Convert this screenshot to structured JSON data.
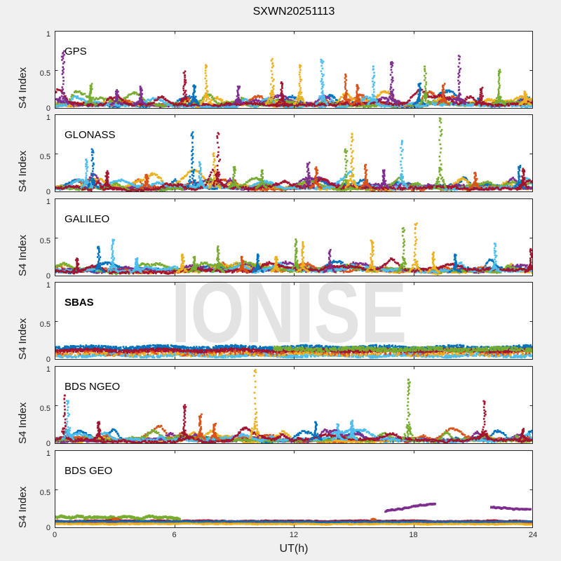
{
  "figure": {
    "title": "SXWN20251113",
    "xlabel": "UT(h)",
    "ylabel": "S4 Index",
    "watermark": "IONISE",
    "background_color": "#f0f0f0",
    "axes_color": "#262626",
    "x_tick_labels": [
      "0",
      "6",
      "12",
      "18",
      "24"
    ],
    "x_tick_hours": [
      0,
      6,
      12,
      18,
      24
    ],
    "y_tick_labels_top_to_bottom": [
      "1",
      "0.5",
      "0"
    ],
    "y_tick_values": [
      0,
      0.5,
      1
    ]
  },
  "chart_data": {
    "type": "scatter",
    "title": "SXWN20251113",
    "xlabel": "UT(h)",
    "ylabel": "S4 Index",
    "x_range_hours": [
      0,
      24
    ],
    "y_range": [
      0,
      1
    ],
    "marker": "square",
    "marker_size_px": 2.6,
    "legend": "none",
    "grid": false,
    "colors": [
      "#0072BD",
      "#D95319",
      "#EDB120",
      "#7E2F8E",
      "#77AC30",
      "#4DBEEE",
      "#A2142F"
    ],
    "color_names": [
      "blue",
      "orange",
      "yellow",
      "purple",
      "green",
      "light-blue",
      "dark-red"
    ],
    "panels": [
      {
        "label": "GPS",
        "bold": false,
        "seed": 11,
        "description": "dense multi-color baseline band S4 0-0.2 with scintillation spike trails",
        "baseline": {
          "n": 620,
          "base": 0.05,
          "var": 0.03,
          "jitter": 0.014,
          "bumps": 9,
          "bump_h": [
            0.03,
            0.12
          ]
        },
        "spikes": [
          [
            0.4,
            0.72,
            3
          ],
          [
            1.8,
            0.3,
            4
          ],
          [
            3.1,
            0.22,
            3
          ],
          [
            4.3,
            0.28,
            3
          ],
          [
            6.5,
            0.46,
            6
          ],
          [
            7.0,
            0.3,
            0
          ],
          [
            7.6,
            0.56,
            2
          ],
          [
            9.2,
            0.28,
            3
          ],
          [
            10.9,
            0.62,
            2
          ],
          [
            11.4,
            0.34,
            6
          ],
          [
            12.3,
            0.56,
            2
          ],
          [
            13.4,
            0.62,
            5
          ],
          [
            14.6,
            0.44,
            1
          ],
          [
            15.2,
            0.3,
            1
          ],
          [
            16.0,
            0.54,
            5
          ],
          [
            16.9,
            0.6,
            3
          ],
          [
            18.3,
            0.32,
            0
          ],
          [
            18.6,
            0.54,
            4
          ],
          [
            19.5,
            0.3,
            1
          ],
          [
            20.3,
            0.68,
            3
          ],
          [
            21.4,
            0.25,
            6
          ],
          [
            22.3,
            0.48,
            4
          ],
          [
            23.6,
            0.22,
            2
          ]
        ]
      },
      {
        "label": "GLONASS",
        "bold": false,
        "seed": 22,
        "description": "baseline band 0-0.2 with tall spikes up to ~0.95",
        "baseline": {
          "n": 620,
          "base": 0.055,
          "var": 0.03,
          "jitter": 0.014,
          "bumps": 9,
          "bump_h": [
            0.03,
            0.13
          ]
        },
        "spikes": [
          [
            1.6,
            0.42,
            5
          ],
          [
            1.9,
            0.55,
            0
          ],
          [
            2.6,
            0.25,
            6
          ],
          [
            4.6,
            0.22,
            1
          ],
          [
            6.9,
            0.75,
            0
          ],
          [
            7.3,
            0.38,
            5
          ],
          [
            8.0,
            0.5,
            2
          ],
          [
            8.2,
            0.76,
            6
          ],
          [
            9.0,
            0.32,
            4
          ],
          [
            10.4,
            0.28,
            4
          ],
          [
            12.7,
            0.36,
            3
          ],
          [
            13.1,
            0.3,
            1
          ],
          [
            14.6,
            0.55,
            4
          ],
          [
            14.9,
            0.75,
            2
          ],
          [
            15.6,
            0.35,
            1
          ],
          [
            16.5,
            0.28,
            3
          ],
          [
            17.4,
            0.66,
            5
          ],
          [
            19.35,
            0.95,
            4
          ],
          [
            21.1,
            0.25,
            1
          ],
          [
            23.3,
            0.32,
            0
          ],
          [
            23.5,
            0.3,
            6
          ]
        ]
      },
      {
        "label": "GALILEO",
        "bold": false,
        "seed": 33,
        "description": "slightly thicker baseline ~0.1 with moderate spikes",
        "baseline": {
          "n": 620,
          "base": 0.075,
          "var": 0.03,
          "jitter": 0.014,
          "bumps": 9,
          "bump_h": [
            0.03,
            0.1
          ]
        },
        "spikes": [
          [
            1.1,
            0.22,
            6
          ],
          [
            2.2,
            0.38,
            0
          ],
          [
            2.9,
            0.47,
            5
          ],
          [
            4.1,
            0.22,
            5
          ],
          [
            6.4,
            0.28,
            2
          ],
          [
            7.0,
            0.25,
            4
          ],
          [
            8.2,
            0.38,
            4
          ],
          [
            9.4,
            0.25,
            1
          ],
          [
            10.2,
            0.28,
            0
          ],
          [
            11.1,
            0.25,
            2
          ],
          [
            12.1,
            0.47,
            4
          ],
          [
            12.45,
            0.44,
            2
          ],
          [
            13.8,
            0.32,
            3
          ],
          [
            15.9,
            0.46,
            2
          ],
          [
            17.5,
            0.62,
            4
          ],
          [
            18.1,
            0.66,
            2
          ],
          [
            19.0,
            0.3,
            2
          ],
          [
            20.1,
            0.28,
            0
          ],
          [
            22.1,
            0.42,
            5
          ],
          [
            23.9,
            0.35,
            6
          ]
        ]
      },
      {
        "label": "SBAS",
        "bold": true,
        "seed": 44,
        "description": "flat quiet bands, no scintillation spikes",
        "bands": [
          {
            "color": 0,
            "level": 0.15,
            "amp": 0.028,
            "n": 1600,
            "t0": 0,
            "t1": 24
          },
          {
            "color": 6,
            "level": 0.115,
            "amp": 0.022,
            "n": 1600,
            "t0": 0,
            "t1": 24
          },
          {
            "color": 5,
            "level": 0.055,
            "amp": 0.018,
            "n": 1200,
            "t0": 0,
            "t1": 24
          },
          {
            "color": 1,
            "level": 0.08,
            "amp": 0.02,
            "n": 350,
            "t0": 0,
            "t1": 24
          },
          {
            "color": 2,
            "level": 0.07,
            "amp": 0.018,
            "n": 250,
            "t0": 0,
            "t1": 24
          },
          {
            "color": 4,
            "level": 0.135,
            "amp": 0.025,
            "n": 700,
            "t0": 11,
            "t1": 24
          }
        ],
        "spikes": []
      },
      {
        "label": "BDS NGEO",
        "bold": false,
        "seed": 55,
        "description": "baseline band with spikes, incl. yellow ~0.95 at 10 UT and green ~0.8 at 17.7 UT",
        "baseline": {
          "n": 620,
          "base": 0.05,
          "var": 0.03,
          "jitter": 0.014,
          "bumps": 9,
          "bump_h": [
            0.03,
            0.11
          ]
        },
        "spikes": [
          [
            0.5,
            0.62,
            6
          ],
          [
            0.65,
            0.55,
            5
          ],
          [
            2.2,
            0.28,
            6
          ],
          [
            6.5,
            0.48,
            6
          ],
          [
            7.3,
            0.36,
            1
          ],
          [
            8.0,
            0.25,
            1
          ],
          [
            10.05,
            0.95,
            2
          ],
          [
            13.1,
            0.28,
            0
          ],
          [
            14.2,
            0.25,
            5
          ],
          [
            14.9,
            0.28,
            5
          ],
          [
            17.75,
            0.82,
            4
          ],
          [
            21.55,
            0.55,
            6
          ],
          [
            23.5,
            0.18,
            6
          ]
        ]
      },
      {
        "label": "BDS GEO",
        "bold": false,
        "seed": 66,
        "description": "continuous GEO traces: green 0-6.3 UT ~0.15, flat orange/yellow/red bands ~0.05-0.1, purple arcs 16.6-19.1 UT rising 0.21->0.31 and 21.9-23.9 UT ~0.25",
        "traces": [
          {
            "color": 1,
            "t0": 0,
            "t1": 24,
            "y0": 0.075,
            "y1": 0.075,
            "amp": 0.01,
            "n": 950
          },
          {
            "color": 2,
            "t0": 0,
            "t1": 24,
            "y0": 0.055,
            "y1": 0.05,
            "amp": 0.008,
            "n": 950
          },
          {
            "color": 6,
            "t0": 0,
            "t1": 24,
            "y0": 0.095,
            "y1": 0.09,
            "amp": 0.009,
            "n": 950
          },
          {
            "color": 0,
            "t0": 0,
            "t1": 24,
            "y0": 0.085,
            "y1": 0.08,
            "amp": 0.007,
            "n": 300
          },
          {
            "color": 4,
            "t0": 0,
            "t1": 6.3,
            "y0": 0.145,
            "y1": 0.13,
            "amp": 0.022,
            "n": 520
          },
          {
            "color": 1,
            "t0": 2.9,
            "t1": 3.2,
            "y0": 0.12,
            "y1": 0.115,
            "amp": 0.01,
            "n": 30
          },
          {
            "color": 1,
            "t0": 15.9,
            "t1": 16.1,
            "y0": 0.11,
            "y1": 0.105,
            "amp": 0.01,
            "n": 25
          },
          {
            "color": 3,
            "t0": 16.6,
            "t1": 19.1,
            "y0": 0.215,
            "y1": 0.315,
            "amp": 0.012,
            "n": 240
          },
          {
            "color": 3,
            "t0": 21.9,
            "t1": 23.9,
            "y0": 0.265,
            "y1": 0.235,
            "amp": 0.012,
            "n": 190
          }
        ],
        "spikes": []
      }
    ]
  }
}
